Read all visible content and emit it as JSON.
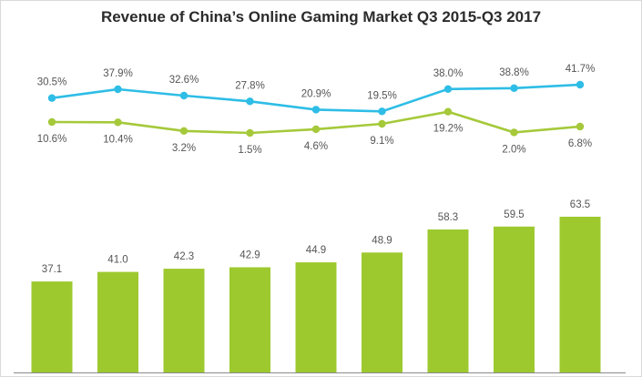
{
  "chart_data": {
    "type": "bar",
    "title": "Revenue of China’s Online  Gaming Market Q3 2015-Q3 2017",
    "xlabel": "",
    "ylabel": "",
    "grid": false,
    "categories": [
      "",
      "",
      "",
      "",
      "",
      "",
      "",
      "",
      ""
    ],
    "ylim": [
      0,
      70
    ],
    "series": [
      {
        "type": "bar",
        "values": [
          37.1,
          41.0,
          42.3,
          42.9,
          44.9,
          48.9,
          58.3,
          59.5,
          63.5
        ],
        "labels": [
          "37.1",
          "41.0",
          "42.3",
          "42.9",
          "44.9",
          "48.9",
          "58.3",
          "59.5",
          "63.5"
        ],
        "color": "#9dc92f"
      },
      {
        "type": "line",
        "values": [
          30.5,
          37.9,
          32.6,
          27.8,
          20.9,
          19.5,
          38.0,
          38.8,
          41.7
        ],
        "labels": [
          "30.5%",
          "37.9%",
          "32.6%",
          "27.8%",
          "20.9%",
          "19.5%",
          "38.0%",
          "38.8%",
          "41.7%"
        ],
        "color": "#2ebde6"
      },
      {
        "type": "line",
        "values": [
          10.6,
          10.4,
          3.2,
          1.5,
          4.6,
          9.1,
          19.2,
          2.0,
          6.8
        ],
        "labels": [
          "10.6%",
          "10.4%",
          "3.2%",
          "1.5%",
          "4.6%",
          "9.1%",
          "19.2%",
          "2.0%",
          "6.8%"
        ],
        "color": "#a5c93a"
      }
    ],
    "legend": "none"
  }
}
